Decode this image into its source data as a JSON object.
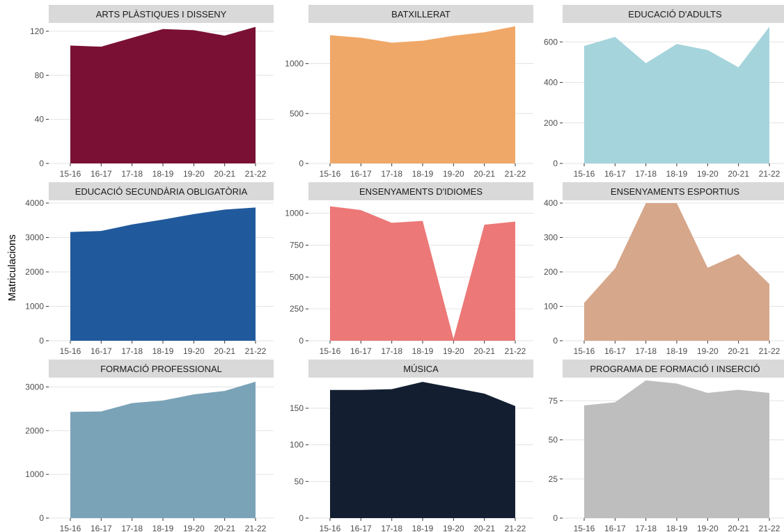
{
  "chart_data": {
    "type": "area",
    "ylabel": "Matriculacions",
    "grid": true,
    "categories": [
      "15-16",
      "16-17",
      "17-18",
      "18-19",
      "19-20",
      "20-21",
      "21-22"
    ],
    "panels": [
      {
        "title": "ARTS PLÀSTIQUES I DISSENY",
        "color": "#7a1034",
        "ylim": [
          0,
          125
        ],
        "yticks": [
          0,
          40,
          80,
          120
        ],
        "values": [
          107,
          106,
          114,
          122,
          121,
          116,
          124
        ]
      },
      {
        "title": "BATXILLERAT",
        "color": "#f0a868",
        "ylim": [
          0,
          1380
        ],
        "yticks": [
          0,
          500,
          1000
        ],
        "values": [
          1285,
          1260,
          1210,
          1230,
          1280,
          1315,
          1375
        ]
      },
      {
        "title": "EDUCACIÓ D'ADULTS",
        "color": "#a5d4dc",
        "ylim": [
          0,
          680
        ],
        "yticks": [
          0,
          200,
          400,
          600
        ],
        "values": [
          580,
          625,
          495,
          590,
          560,
          475,
          675
        ]
      },
      {
        "title": "EDUCACIÓ SECUNDÀRIA OBLIGATÒRIA",
        "color": "#215a9c",
        "ylim": [
          0,
          4000
        ],
        "yticks": [
          0,
          1000,
          2000,
          3000,
          4000
        ],
        "values": [
          3160,
          3190,
          3380,
          3520,
          3680,
          3810,
          3870
        ]
      },
      {
        "title": "ENSENYAMENTS D'IDIOMES",
        "color": "#ec7877",
        "ylim": [
          0,
          1080
        ],
        "yticks": [
          0,
          250,
          500,
          750,
          1000
        ],
        "values": [
          1055,
          1025,
          925,
          940,
          15,
          910,
          935
        ]
      },
      {
        "title": "ENSENYAMENTS ESPORTIUS",
        "color": "#d6a78b",
        "ylim": [
          0,
          400
        ],
        "yticks": [
          0,
          100,
          200,
          300,
          400
        ],
        "values": [
          110,
          210,
          400,
          400,
          212,
          252,
          165
        ]
      },
      {
        "title": "FORMACIÓ PROFESSIONAL",
        "color": "#7ba3b8",
        "ylim": [
          0,
          3150
        ],
        "yticks": [
          0,
          1000,
          2000,
          3000
        ],
        "values": [
          2430,
          2440,
          2630,
          2690,
          2830,
          2910,
          3120
        ]
      },
      {
        "title": "MÚSICA",
        "color": "#131f31",
        "ylim": [
          0,
          188
        ],
        "yticks": [
          0,
          50,
          100,
          150
        ],
        "values": [
          175,
          175,
          176,
          186,
          178,
          170,
          153
        ]
      },
      {
        "title": "PROGRAMA DE FORMACIÓ I INSERCIÓ",
        "color": "#bebebe",
        "ylim": [
          0,
          88
        ],
        "yticks": [
          0,
          25,
          50,
          75
        ],
        "values": [
          72,
          74,
          88,
          86,
          80,
          82,
          80
        ]
      }
    ]
  }
}
